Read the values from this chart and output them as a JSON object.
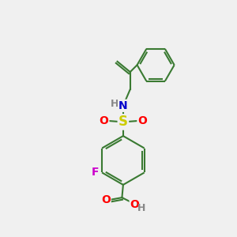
{
  "bg_color": "#f0f0f0",
  "bond_color": "#3a7a32",
  "line_width": 1.5,
  "atom_colors": {
    "N": "#0000cc",
    "S": "#cccc00",
    "O": "#ff0000",
    "F": "#cc00cc",
    "H": "#888888",
    "C": "#3a7a32"
  },
  "font_size": 10,
  "figsize": [
    3.0,
    3.0
  ],
  "dpi": 100
}
